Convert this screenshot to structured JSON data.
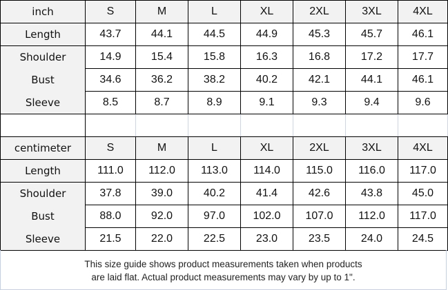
{
  "inch": {
    "unit": "inch",
    "sizes": [
      "S",
      "M",
      "L",
      "XL",
      "2XL",
      "3XL",
      "4XL"
    ],
    "rows": [
      {
        "label": "Length",
        "values": [
          "43.7",
          "44.1",
          "44.5",
          "44.9",
          "45.3",
          "45.7",
          "46.1"
        ]
      },
      {
        "label": "Shoulder",
        "values": [
          "14.9",
          "15.4",
          "15.8",
          "16.3",
          "16.8",
          "17.2",
          "17.7"
        ]
      },
      {
        "label": "Bust",
        "values": [
          "34.6",
          "36.2",
          "38.2",
          "40.2",
          "42.1",
          "44.1",
          "46.1"
        ]
      },
      {
        "label": "Sleeve",
        "values": [
          "8.5",
          "8.7",
          "8.9",
          "9.1",
          "9.3",
          "9.4",
          "9.6"
        ]
      }
    ]
  },
  "cm": {
    "unit": "centimeter",
    "sizes": [
      "S",
      "M",
      "L",
      "XL",
      "2XL",
      "3XL",
      "4XL"
    ],
    "rows": [
      {
        "label": "Length",
        "values": [
          "111.0",
          "112.0",
          "113.0",
          "114.0",
          "115.0",
          "116.0",
          "117.0"
        ]
      },
      {
        "label": "Shoulder",
        "values": [
          "37.8",
          "39.0",
          "40.2",
          "41.4",
          "42.6",
          "43.8",
          "45.0"
        ]
      },
      {
        "label": "Bust",
        "values": [
          "88.0",
          "92.0",
          "97.0",
          "102.0",
          "107.0",
          "112.0",
          "117.0"
        ]
      },
      {
        "label": "Sleeve",
        "values": [
          "21.5",
          "22.0",
          "22.5",
          "23.0",
          "23.5",
          "24.0",
          "24.5"
        ]
      }
    ]
  },
  "note": {
    "line1": "This size guide shows product measurements taken when products",
    "line2": "are laid flat. Actual product measurements may vary by up to 1\"."
  }
}
